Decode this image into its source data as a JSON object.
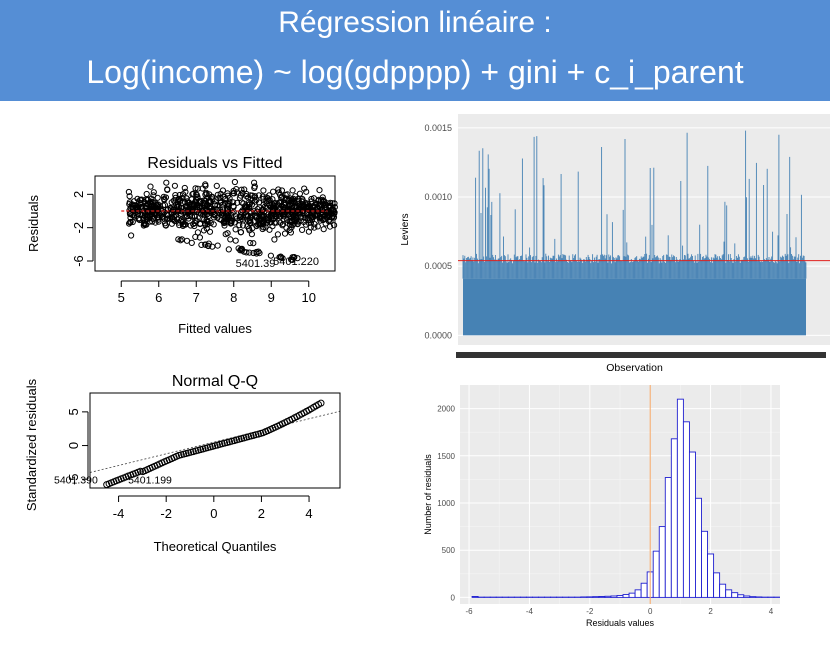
{
  "banner": {
    "title_line1": "Régression linéaire :",
    "title_line2": "Log(income) ~ log(gdpppp) + gini + c_i_parent"
  },
  "colors": {
    "banner": "#558ed5",
    "bar_fill": "#4682b4",
    "hist_outline": "#1f1fd0",
    "ref_line": "#e0201e",
    "zero_line": "#f4a460",
    "panel_bg": "#ebebeb"
  },
  "chart_data": [
    {
      "id": "resid-fitted",
      "type": "scatter",
      "title": "Residuals vs Fitted",
      "xlabel": "Fitted values",
      "ylabel": "Residuals",
      "xlim": [
        4.3,
        10.7
      ],
      "ylim": [
        -7.2,
        4.2
      ],
      "x_ticks": [
        5,
        6,
        7,
        8,
        9,
        10
      ],
      "y_ticks": [
        -6,
        -2,
        2
      ],
      "point_labels": [
        "5401.39",
        "5401.220"
      ],
      "reference_line_y": 0
    },
    {
      "id": "qq",
      "type": "scatter",
      "title": "Normal Q-Q",
      "xlabel": "Theoretical Quantiles",
      "ylabel": "Standardized residuals",
      "xlim": [
        -5.2,
        5.3
      ],
      "ylim": [
        -6.3,
        7.8
      ],
      "x_ticks": [
        -4,
        -2,
        0,
        2,
        4
      ],
      "y_ticks": [
        -5,
        0,
        5
      ],
      "point_labels": [
        "5401.390",
        "5401.199"
      ]
    },
    {
      "id": "leviers",
      "type": "bar",
      "xlabel": "Observation",
      "ylabel": "Leviers",
      "ylim": [
        -7e-05,
        0.0016
      ],
      "y_ticks": [
        0.0,
        0.0005,
        0.001,
        0.0015
      ],
      "y_tick_labels": [
        "0.0000",
        "0.0005",
        "0.0010",
        "0.0015"
      ],
      "baseline_level": 0.00041,
      "reference_line_y": 0.00054
    },
    {
      "id": "hist",
      "type": "bar",
      "xlabel": "Residuals values",
      "ylabel": "Number of residuals",
      "xlim": [
        -6.3,
        4.3
      ],
      "ylim": [
        -70,
        2250
      ],
      "x_ticks": [
        -6,
        -4,
        -2,
        0,
        2,
        4
      ],
      "y_ticks": [
        0,
        500,
        1000,
        1500,
        2000
      ],
      "bin_width": 0.2,
      "bin_start": -5.9,
      "counts": [
        10,
        0,
        0,
        0,
        0,
        0,
        0,
        0,
        0,
        0,
        0,
        0,
        0,
        0,
        0,
        0,
        0,
        0,
        5,
        6,
        8,
        10,
        12,
        15,
        20,
        30,
        45,
        80,
        150,
        270,
        490,
        750,
        1270,
        1680,
        2100,
        1860,
        1540,
        1050,
        700,
        460,
        260,
        140,
        80,
        50,
        28,
        15,
        8,
        5,
        3,
        2,
        1,
        1,
        1,
        1,
        1,
        1,
        1,
        1,
        1,
        0,
        0,
        0,
        0,
        0,
        0,
        0,
        0,
        0,
        0,
        0,
        0,
        0,
        0,
        0,
        0,
        0,
        0,
        0,
        0,
        0,
        0,
        0,
        0,
        0,
        0,
        0,
        0,
        0,
        0,
        0,
        0,
        0,
        0,
        0,
        0,
        0,
        0,
        0,
        0
      ],
      "vertical_line_x": 0
    }
  ]
}
